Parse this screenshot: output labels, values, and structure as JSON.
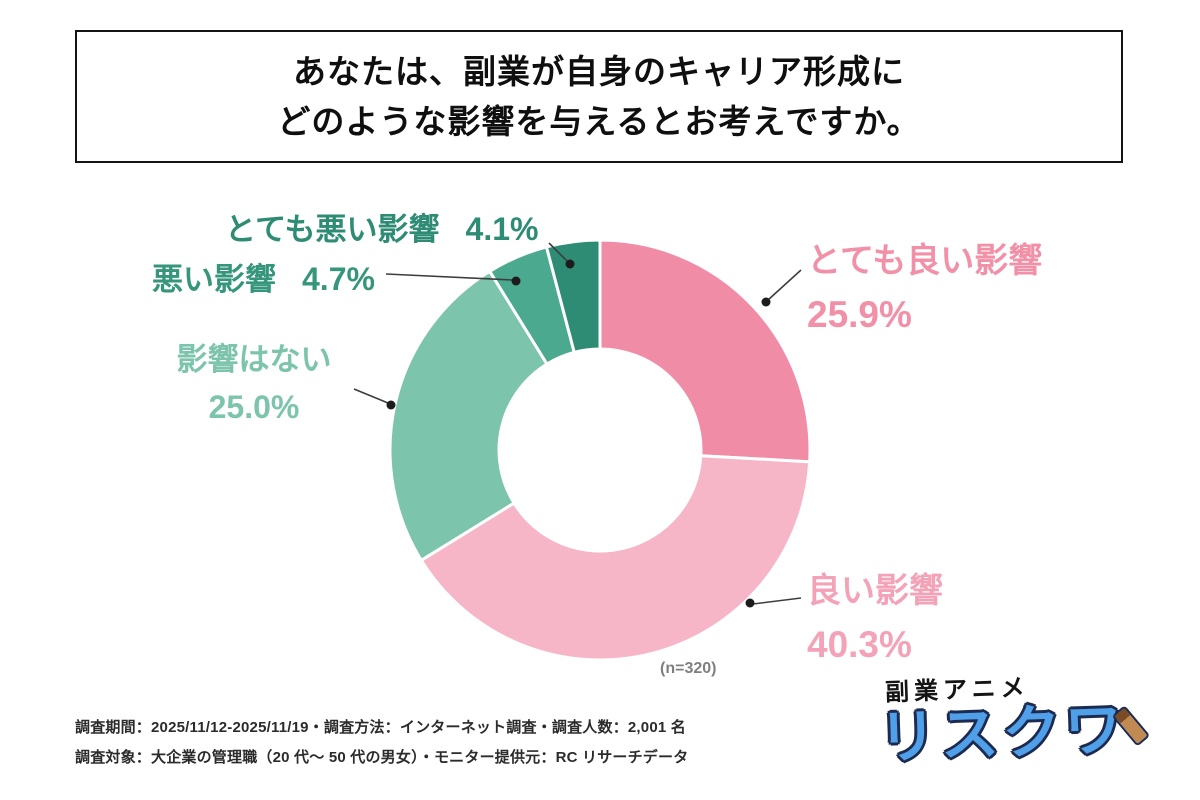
{
  "title": {
    "line1": "あなたは、副業が自身のキャリア形成に",
    "line2": "どのような影響を与えるとお考えですか。"
  },
  "chart_data": {
    "type": "pie",
    "donut": true,
    "start_angle_deg": -90,
    "direction": "clockwise",
    "n_label": "(n=320)",
    "segments": [
      {
        "label": "とても良い影響",
        "value": 25.9,
        "pct_text": "25.9%",
        "color": "#F08CA6",
        "label_color": "#F190A7"
      },
      {
        "label": "良い影響",
        "value": 40.3,
        "pct_text": "40.3%",
        "color": "#F7B5C8",
        "label_color": "#F4A2B8"
      },
      {
        "label": "影響はない",
        "value": 25.0,
        "pct_text": "25.0%",
        "color": "#7CC4AB",
        "label_color": "#7CC4AB"
      },
      {
        "label": "悪い影響",
        "value": 4.7,
        "pct_text": "4.7%",
        "color": "#4AA98E",
        "label_color": "#35967C"
      },
      {
        "label": "とても悪い影響",
        "value": 4.1,
        "pct_text": "4.1%",
        "color": "#2E8C75",
        "label_color": "#2E8C75"
      }
    ]
  },
  "footer": {
    "line1": "調査期間：2025/11/12-2025/11/19・調査方法：インターネット調査・調査人数：2,001 名",
    "line2": "調査対象：大企業の管理職（20 代〜 50 代の男女）・モニター提供元：RC リサーチデータ"
  },
  "logo": {
    "top_text": "副業アニメ",
    "main_text": "リスクワ"
  }
}
